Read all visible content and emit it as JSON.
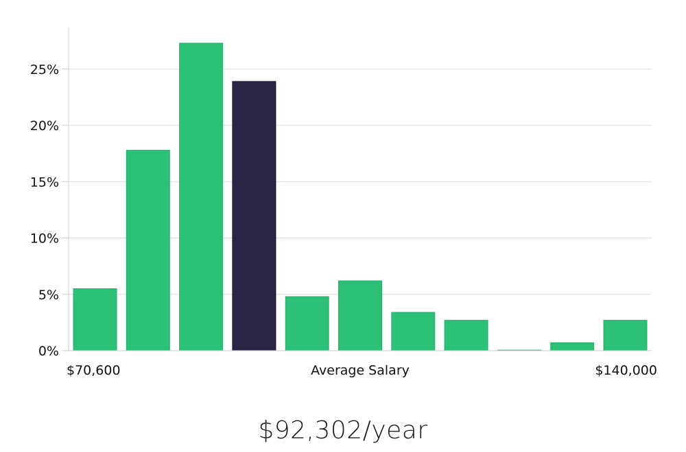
{
  "chart_data": {
    "type": "bar",
    "values": [
      5.5,
      17.8,
      27.3,
      23.9,
      4.8,
      6.2,
      3.4,
      2.7,
      0.05,
      0.7,
      2.7
    ],
    "highlight_index": 3,
    "x_min_label": "$70,600",
    "x_max_label": "$140,000",
    "xlabel": "Average Salary",
    "ylabel": "",
    "y_ticks": [
      "0%",
      "5%",
      "10%",
      "15%",
      "20%",
      "25%"
    ],
    "y_tick_values": [
      0,
      5,
      10,
      15,
      20,
      25
    ],
    "ylim": [
      0,
      28.7
    ],
    "grid": true,
    "colors": {
      "bar": "#2bbf78",
      "highlight": "#292645",
      "highlight_stroke": "#14132a",
      "grid": "#dddddd",
      "axis": "#cccccc"
    }
  },
  "summary": {
    "salary_text": "$92,302/year"
  }
}
